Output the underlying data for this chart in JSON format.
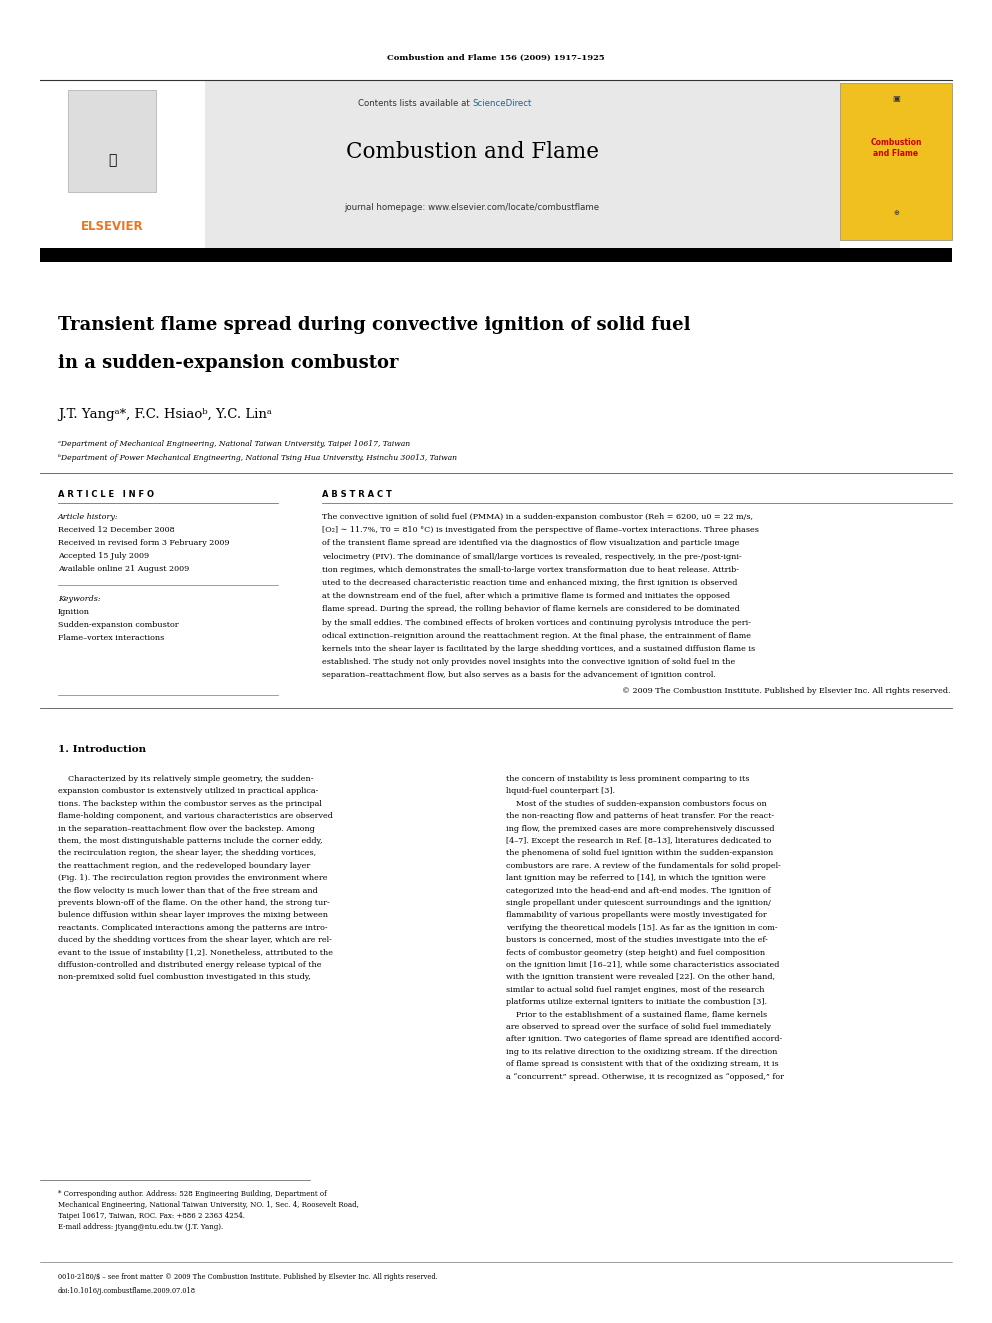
{
  "page_width": 9.92,
  "page_height": 13.23,
  "background_color": "#ffffff",
  "journal_citation": "Combustion and Flame 156 (2009) 1917–1925",
  "sciencedirect_color": "#1a6496",
  "header_bg": "#e8e8e8",
  "black_bar_color": "#000000",
  "title_line1": "Transient flame spread during convective ignition of solid fuel",
  "title_line2": "in a sudden-expansion combustor",
  "authors": "J.T. Yangᵃ*, F.C. Hsiaoᵇ, Y.C. Linᵃ",
  "affil_a": "ᵃDepartment of Mechanical Engineering, National Taiwan University, Taipei 10617, Taiwan",
  "affil_b": "ᵇDepartment of Power Mechanical Engineering, National Tsing Hua University, Hsinchu 30013, Taiwan",
  "article_info_title": "A R T I C L E   I N F O",
  "abstract_title": "A B S T R A C T",
  "article_history_title": "Article history:",
  "received1": "Received 12 December 2008",
  "received2": "Received in revised form 3 February 2009",
  "accepted": "Accepted 15 July 2009",
  "available": "Available online 21 August 2009",
  "keywords_title": "Keywords:",
  "keyword1": "Ignition",
  "keyword2": "Sudden-expansion combustor",
  "keyword3": "Flame–vortex interactions",
  "copyright_line": "© 2009 The Combustion Institute. Published by Elsevier Inc. All rights reserved.",
  "section1_title": "1. Introduction",
  "footnote_email": "E-mail address: jtyang@ntu.edu.tw (J.T. Yang).",
  "bottom_line1": "0010-2180/$ – see front matter © 2009 The Combustion Institute. Published by Elsevier Inc. All rights reserved.",
  "bottom_line2": "doi:10.1016/j.combustflame.2009.07.018",
  "elsevier_orange": "#e87722",
  "journal_cover_yellow": "#f0c020",
  "journal_cover_red": "#cc0000",
  "abstract_lines": [
    "The convective ignition of solid fuel (PMMA) in a sudden-expansion combustor (Reh = 6200, u0 = 22 m/s,",
    "[O₂] ∼ 11.7%, T0 = 810 °C) is investigated from the perspective of flame–vortex interactions. Three phases",
    "of the transient flame spread are identified via the diagnostics of flow visualization and particle image",
    "velocimetry (PIV). The dominance of small/large vortices is revealed, respectively, in the pre-/post-igni-",
    "tion regimes, which demonstrates the small-to-large vortex transformation due to heat release. Attrib-",
    "uted to the decreased characteristic reaction time and enhanced mixing, the first ignition is observed",
    "at the downstream end of the fuel, after which a primitive flame is formed and initiates the opposed",
    "flame spread. During the spread, the rolling behavior of flame kernels are considered to be dominated",
    "by the small eddies. The combined effects of broken vortices and continuing pyrolysis introduce the peri-",
    "odical extinction–reignition around the reattachment region. At the final phase, the entrainment of flame",
    "kernels into the shear layer is facilitated by the large shedding vortices, and a sustained diffusion flame is",
    "established. The study not only provides novel insights into the convective ignition of solid fuel in the",
    "separation–reattachment flow, but also serves as a basis for the advancement of ignition control."
  ],
  "intro1_lines": [
    "    Characterized by its relatively simple geometry, the sudden-",
    "expansion combustor is extensively utilized in practical applica-",
    "tions. The backstep within the combustor serves as the principal",
    "flame-holding component, and various characteristics are observed",
    "in the separation–reattachment flow over the backstep. Among",
    "them, the most distinguishable patterns include the corner eddy,",
    "the recirculation region, the shear layer, the shedding vortices,",
    "the reattachment region, and the redeveloped boundary layer",
    "(Fig. 1). The recirculation region provides the environment where",
    "the flow velocity is much lower than that of the free stream and",
    "prevents blown-off of the flame. On the other hand, the strong tur-",
    "bulence diffusion within shear layer improves the mixing between",
    "reactants. Complicated interactions among the patterns are intro-",
    "duced by the shedding vortices from the shear layer, which are rel-",
    "evant to the issue of instability [1,2]. Nonetheless, attributed to the",
    "diffusion-controlled and distributed energy release typical of the",
    "non-premixed solid fuel combustion investigated in this study,"
  ],
  "intro2_lines": [
    "the concern of instability is less prominent comparing to its",
    "liquid-fuel counterpart [3].",
    "    Most of the studies of sudden-expansion combustors focus on",
    "the non-reacting flow and patterns of heat transfer. For the react-",
    "ing flow, the premixed cases are more comprehensively discussed",
    "[4–7]. Except the research in Ref. [8–13], literatures dedicated to",
    "the phenomena of solid fuel ignition within the sudden-expansion",
    "combustors are rare. A review of the fundamentals for solid propel-",
    "lant ignition may be referred to [14], in which the ignition were",
    "categorized into the head-end and aft-end modes. The ignition of",
    "single propellant under quiescent surroundings and the ignition/",
    "flammability of various propellants were mostly investigated for",
    "verifying the theoretical models [15]. As far as the ignition in com-",
    "bustors is concerned, most of the studies investigate into the ef-",
    "fects of combustor geometry (step height) and fuel composition",
    "on the ignition limit [16–21], while some characteristics associated",
    "with the ignition transient were revealed [22]. On the other hand,",
    "similar to actual solid fuel ramjet engines, most of the research",
    "platforms utilize external igniters to initiate the combustion [3].",
    "    Prior to the establishment of a sustained flame, flame kernels",
    "are observed to spread over the surface of solid fuel immediately",
    "after ignition. Two categories of flame spread are identified accord-",
    "ing to its relative direction to the oxidizing stream. If the direction",
    "of flame spread is consistent with that of the oxidizing stream, it is",
    "a “concurrent” spread. Otherwise, it is recognized as “opposed,” for"
  ],
  "footnote_lines": [
    "* Corresponding author. Address: 528 Engineering Building, Department of",
    "Mechanical Engineering, National Taiwan University, NO. 1, Sec. 4, Roosevelt Road,",
    "Taipei 10617, Taiwan, ROC. Fax: +886 2 2363 4254."
  ]
}
